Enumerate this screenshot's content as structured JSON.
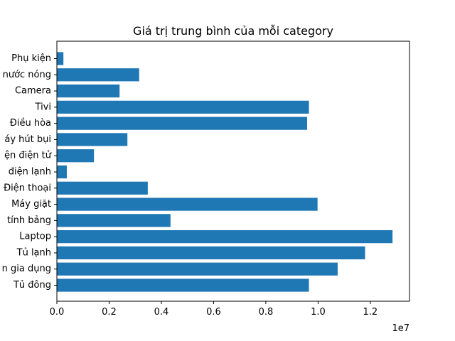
{
  "chart_data": {
    "type": "bar",
    "orientation": "horizontal",
    "title": "Giá trị trung bình của mỗi category",
    "categories": [
      "Tủ đông",
      "Đồ gia dụng",
      "Tủ lạnh",
      "Laptop",
      "Máy tính bảng",
      "Máy giặt",
      "Điện thoại",
      "Linh kiện điện lạnh",
      "Linh kiện điện tử",
      "Máy hút bụi",
      "Điều hòa",
      "Tivi",
      "Camera",
      "Máy nước nóng",
      "Phụ kiện"
    ],
    "category_labels_visible": [
      "Tủ đông",
      "n gia dụng",
      "Tủ lạnh",
      "Laptop",
      "tính bảng",
      "Máy giặt",
      "Điện thoại",
      " điện lạnh",
      "ện điện tử",
      "áy hút bụi",
      "Điều hòa",
      "Tivi",
      "Camera",
      "nước nóng",
      "Phụ kiện"
    ],
    "values": [
      9650000,
      10750000,
      11800000,
      12850000,
      4350000,
      9980000,
      3480000,
      380000,
      1420000,
      2700000,
      9580000,
      9650000,
      2400000,
      3150000,
      250000
    ],
    "xlim": [
      0,
      13500000
    ],
    "xticks": [
      0,
      2000000,
      4000000,
      6000000,
      8000000,
      10000000,
      12000000
    ],
    "xtick_labels": [
      "0.0",
      "0.2",
      "0.4",
      "0.6",
      "0.8",
      "1.0",
      "1.2"
    ],
    "x_offset_text": "1e7",
    "xlabel": "",
    "ylabel": "",
    "grid": false,
    "bar_color": "#1f77b4"
  }
}
